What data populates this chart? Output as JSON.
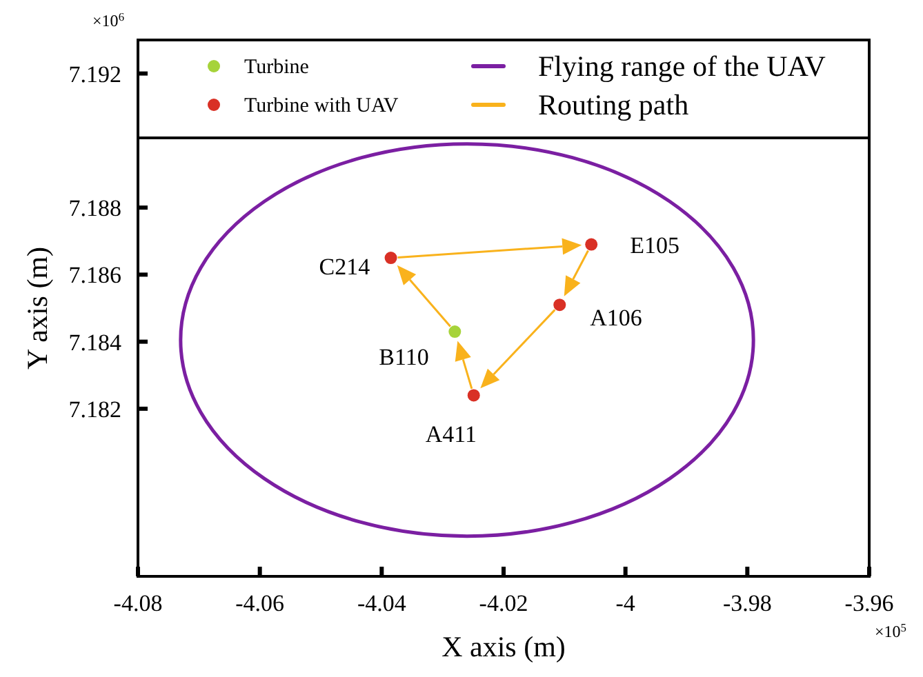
{
  "chart_data": {
    "type": "scatter",
    "xlabel": "X axis (m)",
    "ylabel": "Y axis (m)",
    "xlim": [
      -4.08,
      -3.96
    ],
    "xticks": [
      -4.08,
      -4.06,
      -4.04,
      -4.02,
      -4,
      -3.98,
      -3.96
    ],
    "ylim": [
      7.177,
      7.193
    ],
    "yticks": [
      7.182,
      7.184,
      7.186,
      7.188,
      7.192
    ],
    "legend": "top",
    "marker": "circle",
    "series": [
      {
        "name": "Turbine",
        "color": "#a6d33a",
        "x": [
          -4.028
        ],
        "values": [
          7.1843
        ]
      },
      {
        "name": "Turbine with UAV",
        "color": "#d93025",
        "x": [
          -4.0385,
          -4.0056,
          -4.0108,
          -4.0249
        ],
        "values": [
          7.1865,
          7.1869,
          7.1851,
          7.1824
        ]
      }
    ],
    "annotations": [
      {
        "text": "C214",
        "x": -4.0385,
        "y": 7.1865
      },
      {
        "text": "E105",
        "x": -4.0056,
        "y": 7.1869
      },
      {
        "text": "A106",
        "x": -4.0108,
        "y": 7.1851
      },
      {
        "text": "B110",
        "x": -4.028,
        "y": 7.1843
      },
      {
        "text": "A411",
        "x": -4.0249,
        "y": 7.1824
      },
      "×10$^{6}$",
      "×10$^{5}$",
      "Flying range of the UAV",
      "Routing path"
    ]
  }
}
